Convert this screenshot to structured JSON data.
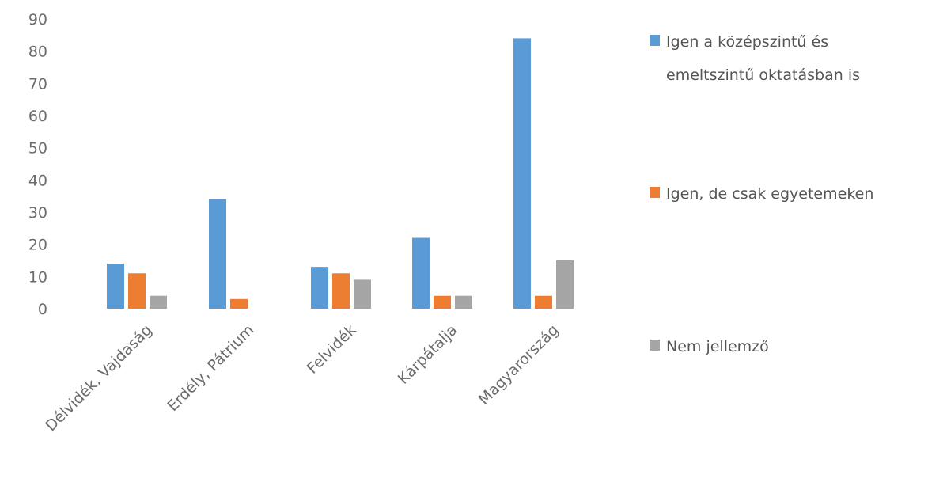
{
  "chart_data": {
    "type": "bar",
    "categories": [
      "Délvidék, Vajdaság",
      "Erdély, Pátrium",
      "Felvidék",
      "Kárpátalja",
      "Magyarország"
    ],
    "series": [
      {
        "name": "Igen a középszintű és emeltszintű oktatásban is",
        "color": "#5b9bd5",
        "values": [
          14,
          34,
          13,
          22,
          84
        ]
      },
      {
        "name": "Igen, de csak egyetemeken",
        "color": "#ed7d31",
        "values": [
          11,
          3,
          11,
          4,
          4
        ]
      },
      {
        "name": "Nem jellemző",
        "color": "#a5a5a5",
        "values": [
          4,
          0,
          9,
          4,
          15
        ]
      }
    ],
    "legend_lines": [
      [
        "Igen a középszintű és",
        "emeltszintű oktatásban is"
      ],
      [
        "Igen, de csak egyetemeken"
      ],
      [
        "Nem jellemző"
      ]
    ],
    "yticks": [
      0,
      10,
      20,
      30,
      40,
      50,
      60,
      70,
      80,
      90
    ],
    "ylim": [
      0,
      90
    ],
    "grid": false,
    "legend_position": "right",
    "title": "",
    "xlabel": "",
    "ylabel": ""
  }
}
